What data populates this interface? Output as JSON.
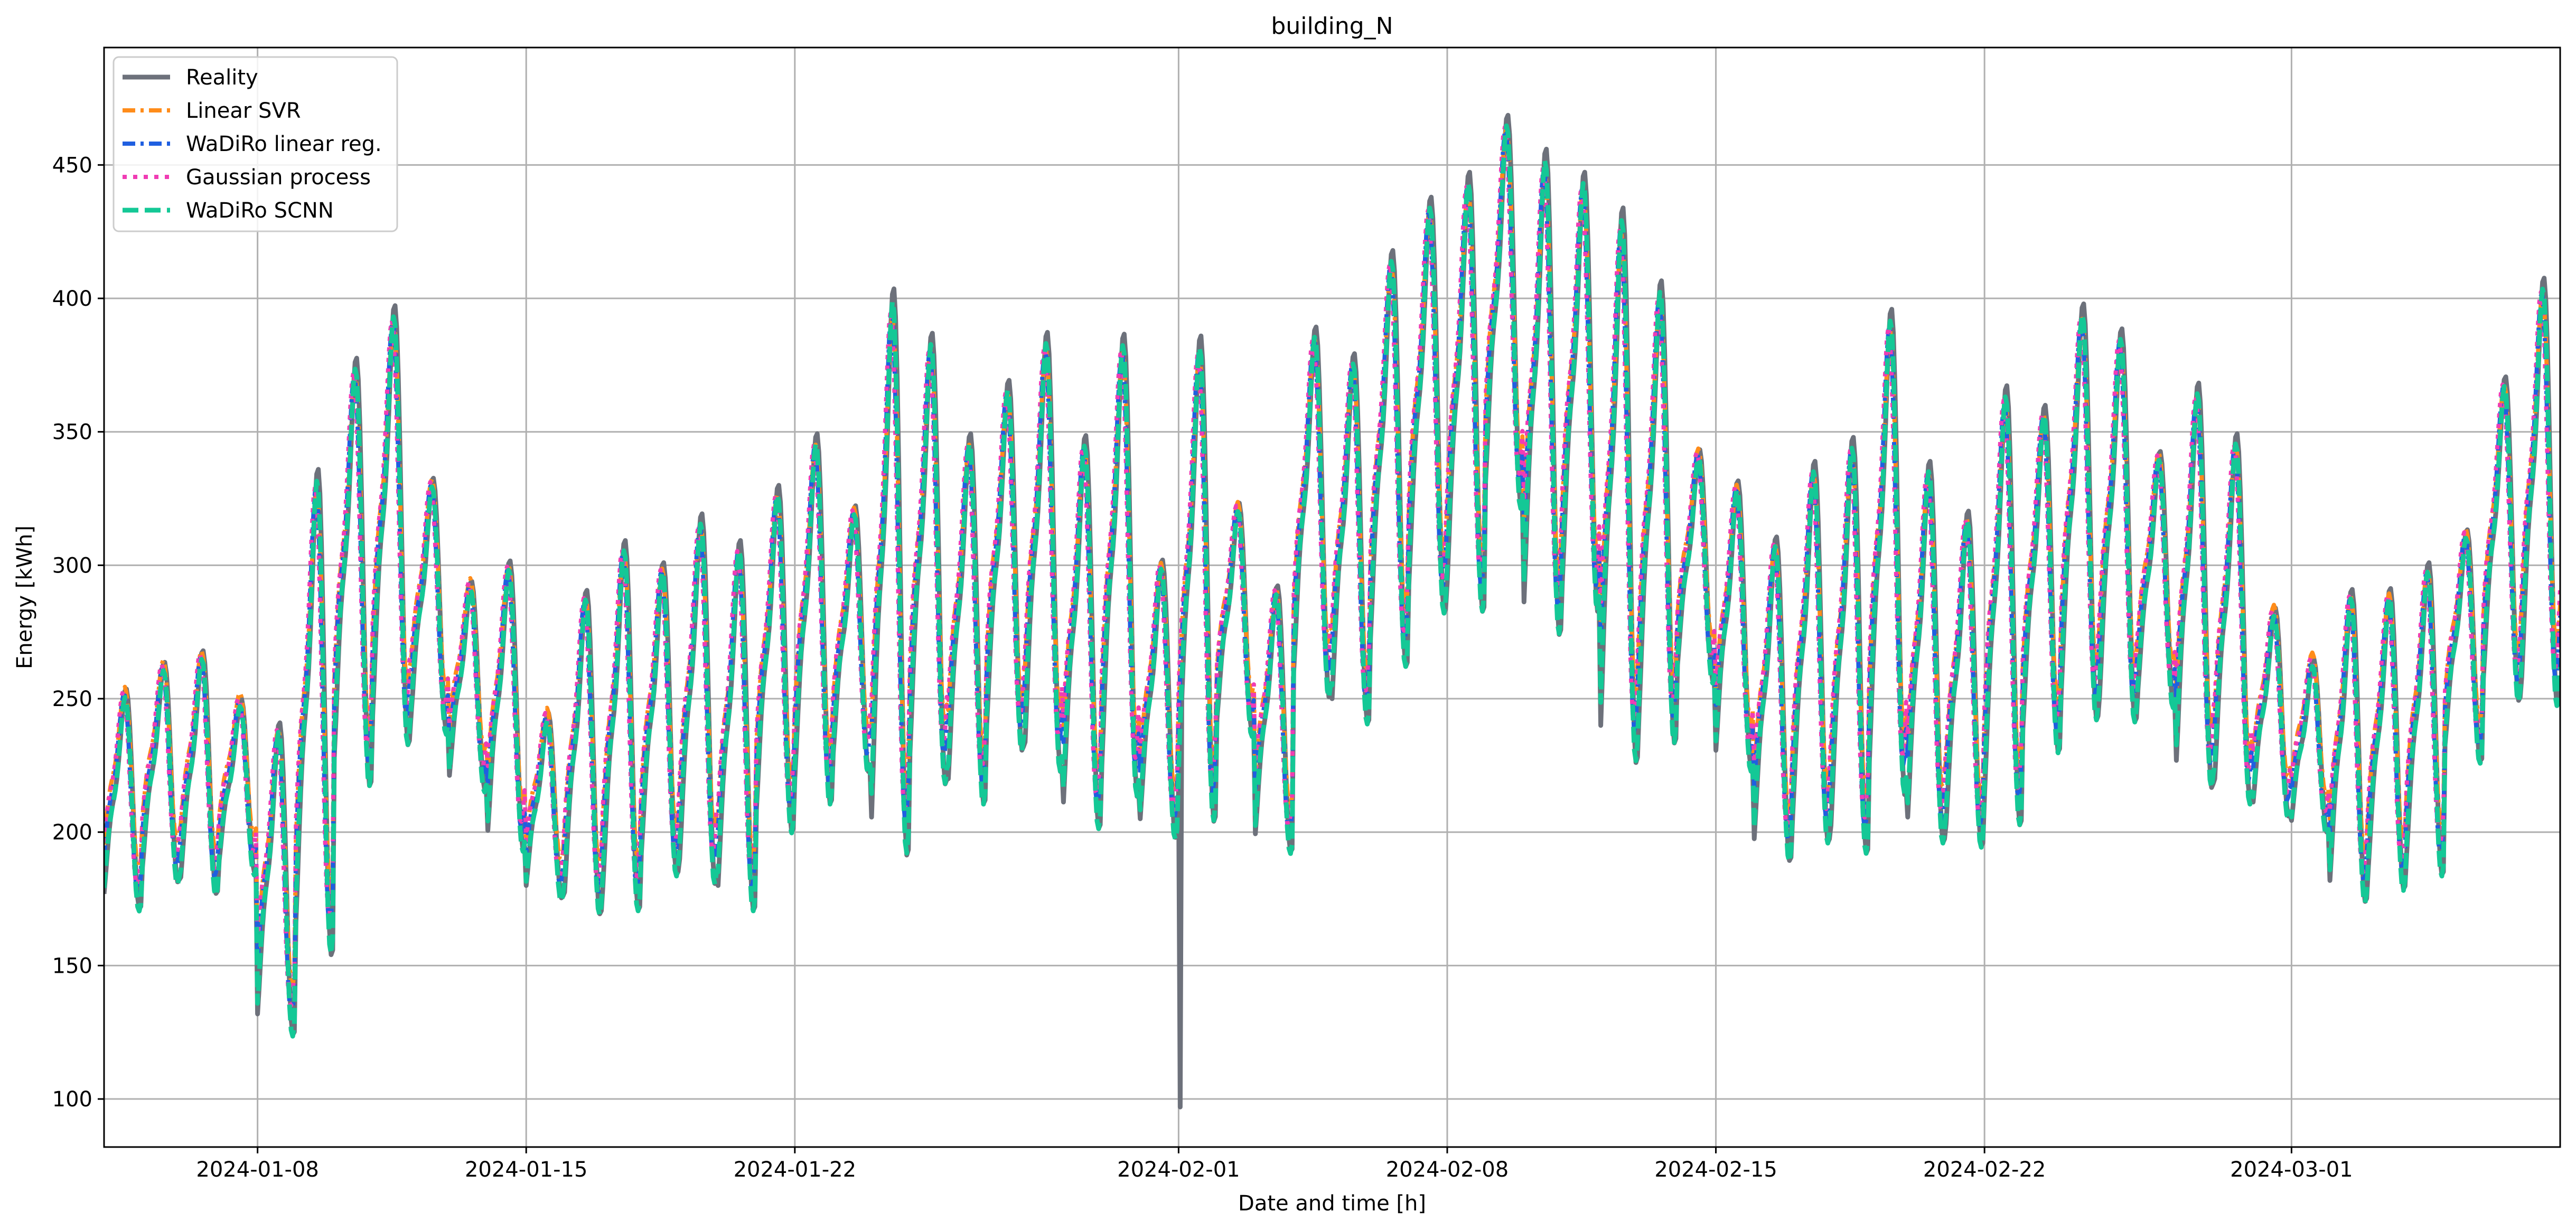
{
  "chart_data": {
    "type": "line",
    "title": "building_N",
    "xlabel": "Date and time [h]",
    "ylabel": "Energy [kWh]",
    "xlim": [
      "2024-01-04",
      "2024-03-08"
    ],
    "ylim": [
      82,
      494
    ],
    "grid": true,
    "legend_position": "top-left",
    "x_ticks": [
      "2024-01-08",
      "2024-01-15",
      "2024-01-22",
      "2024-02-01",
      "2024-02-08",
      "2024-02-15",
      "2024-02-22",
      "2024-03-01"
    ],
    "y_ticks": [
      100,
      150,
      200,
      250,
      300,
      350,
      400,
      450
    ],
    "x": [
      "2024-01-04",
      "2024-01-05",
      "2024-01-06",
      "2024-01-07",
      "2024-01-08",
      "2024-01-09",
      "2024-01-10",
      "2024-01-11",
      "2024-01-12",
      "2024-01-13",
      "2024-01-14",
      "2024-01-15",
      "2024-01-16",
      "2024-01-17",
      "2024-01-18",
      "2024-01-19",
      "2024-01-20",
      "2024-01-21",
      "2024-01-22",
      "2024-01-23",
      "2024-01-24",
      "2024-01-25",
      "2024-01-26",
      "2024-01-27",
      "2024-01-28",
      "2024-01-29",
      "2024-01-30",
      "2024-01-31",
      "2024-02-01",
      "2024-02-02",
      "2024-02-03",
      "2024-02-04",
      "2024-02-05",
      "2024-02-06",
      "2024-02-07",
      "2024-02-08",
      "2024-02-09",
      "2024-02-10",
      "2024-02-11",
      "2024-02-12",
      "2024-02-13",
      "2024-02-14",
      "2024-02-15",
      "2024-02-16",
      "2024-02-17",
      "2024-02-18",
      "2024-02-19",
      "2024-02-20",
      "2024-02-21",
      "2024-02-22",
      "2024-02-23",
      "2024-02-24",
      "2024-02-25",
      "2024-02-26",
      "2024-02-27",
      "2024-02-28",
      "2024-02-29",
      "2024-03-01",
      "2024-03-02",
      "2024-03-03",
      "2024-03-04",
      "2024-03-05",
      "2024-03-06",
      "2024-03-07",
      "2024-03-08"
    ],
    "series_low": [
      165,
      175,
      170,
      180,
      115,
      140,
      205,
      220,
      230,
      210,
      185,
      170,
      160,
      160,
      175,
      170,
      160,
      190,
      200,
      215,
      175,
      205,
      200,
      220,
      210,
      190,
      200,
      190,
      190,
      230,
      185,
      240,
      230,
      250,
      270,
      270,
      310,
      260,
      270,
      210,
      220,
      250,
      215,
      180,
      185,
      180,
      200,
      185,
      185,
      190,
      220,
      230,
      230,
      240,
      205,
      200,
      200,
      195,
      165,
      170,
      175,
      220,
      240,
      235,
      230
    ],
    "series_high": [
      260,
      270,
      275,
      255,
      250,
      350,
      390,
      410,
      340,
      300,
      310,
      250,
      300,
      320,
      310,
      330,
      320,
      340,
      360,
      330,
      420,
      400,
      360,
      380,
      400,
      360,
      400,
      310,
      400,
      330,
      300,
      400,
      390,
      430,
      450,
      460,
      480,
      470,
      460,
      450,
      420,
      350,
      340,
      320,
      350,
      360,
      410,
      350,
      330,
      380,
      370,
      410,
      400,
      350,
      380,
      360,
      290,
      270,
      300,
      300,
      310,
      320,
      380,
      420,
      430
    ],
    "series": [
      {
        "name": "Reality",
        "color": "#6d717b",
        "dash": "solid",
        "width": 9,
        "amp": 1.0,
        "bias": 0,
        "shift": 0.0,
        "spike": {
          "date": "2024-02-01",
          "value": 97
        }
      },
      {
        "name": "Linear SVR",
        "color": "#ff8c1a",
        "dash": "dashdot",
        "width": 8,
        "amp": 0.82,
        "bias": 8,
        "shift": 0.03
      },
      {
        "name": "WaDiRo linear reg.",
        "color": "#1f5fe0",
        "dash": "dashdot",
        "width": 8,
        "amp": 0.9,
        "bias": 2,
        "shift": 0.05
      },
      {
        "name": "Gaussian process",
        "color": "#f03cb4",
        "dash": "dotted",
        "width": 8,
        "amp": 0.88,
        "bias": 4,
        "shift": 0.07
      },
      {
        "name": "WaDiRo SCNN",
        "color": "#14c896",
        "dash": "dashed",
        "width": 9,
        "amp": 0.97,
        "bias": -2,
        "shift": 0.02
      }
    ]
  }
}
